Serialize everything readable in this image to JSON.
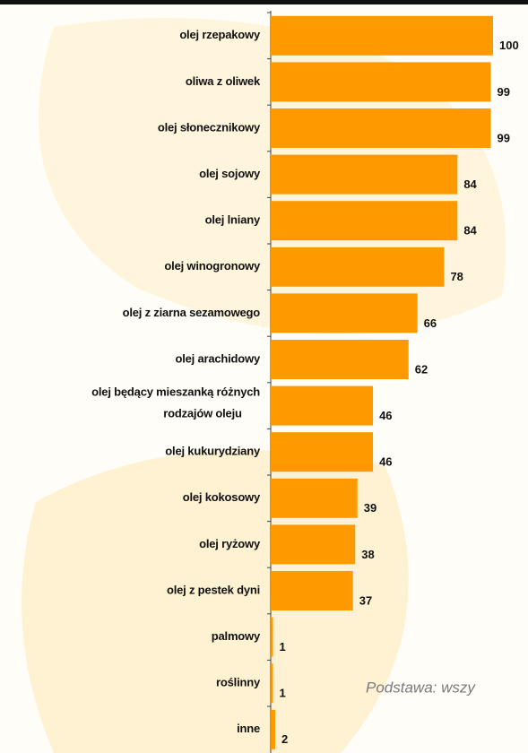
{
  "chart_data": {
    "type": "bar",
    "orientation": "horizontal",
    "categories": [
      "olej rzepakowy",
      "oliwa z oliwek",
      "olej słonecznikowy",
      "olej sojowy",
      "olej lniany",
      "olej winogronowy",
      "olej z ziarna sezamowego",
      "olej arachidowy",
      "olej będący mieszanką różnych\nrodzajów oleju",
      "olej kukurydziany",
      "olej kokosowy",
      "olej ryżowy",
      "olej z pestek dyni",
      "palmowy",
      "roślinny",
      "inne"
    ],
    "values": [
      100,
      99,
      99,
      84,
      84,
      78,
      66,
      62,
      46,
      46,
      39,
      38,
      37,
      1,
      1,
      2
    ],
    "color": "#ff9900",
    "annotation": "Podstawa: wszy"
  }
}
